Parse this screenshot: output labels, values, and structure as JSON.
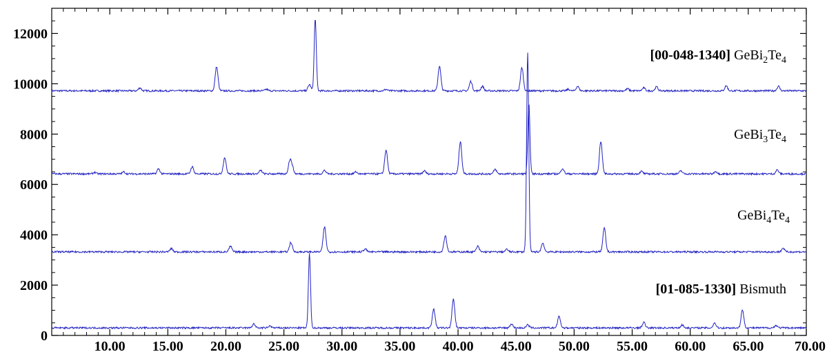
{
  "chart_data": {
    "type": "line",
    "title": "",
    "xlabel": "",
    "ylabel": "",
    "xlim": [
      5,
      70
    ],
    "ylim": [
      0,
      13000
    ],
    "x_ticks": [
      10,
      15,
      20,
      25,
      30,
      35,
      40,
      45,
      50,
      55,
      60,
      65,
      70
    ],
    "x_tick_labels": [
      "10.00",
      "15.00",
      "20.00",
      "25.00",
      "30.00",
      "35.00",
      "40.00",
      "45.00",
      "50.00",
      "55.00",
      "60.00",
      "65.00",
      "70.00"
    ],
    "y_ticks": [
      0,
      2000,
      4000,
      6000,
      8000,
      10000,
      12000
    ],
    "y_tick_labels": [
      "0",
      "2000",
      "4000",
      "6000",
      "8000",
      "10000",
      "12000"
    ],
    "grid": false,
    "line_color": "#2020c0",
    "series": [
      {
        "name": "GeBi2Te4",
        "baseline": 9720,
        "peaks": [
          [
            12.6,
            120
          ],
          [
            19.2,
            960
          ],
          [
            23.5,
            60
          ],
          [
            27.2,
            250
          ],
          [
            27.7,
            2850
          ],
          [
            33.8,
            60
          ],
          [
            38.4,
            980
          ],
          [
            41.1,
            380
          ],
          [
            42.1,
            180
          ],
          [
            45.5,
            920
          ],
          [
            49.5,
            60
          ],
          [
            50.3,
            180
          ],
          [
            54.6,
            80
          ],
          [
            56.0,
            120
          ],
          [
            57.1,
            160
          ],
          [
            63.1,
            200
          ],
          [
            67.6,
            180
          ]
        ]
      },
      {
        "name": "GeBi3Te4",
        "baseline": 6420,
        "peaks": [
          [
            8.7,
            60
          ],
          [
            11.2,
            80
          ],
          [
            14.2,
            200
          ],
          [
            17.1,
            280
          ],
          [
            19.9,
            650
          ],
          [
            23.0,
            140
          ],
          [
            25.5,
            480
          ],
          [
            25.7,
            300
          ],
          [
            28.5,
            140
          ],
          [
            31.2,
            80
          ],
          [
            33.8,
            950
          ],
          [
            37.1,
            120
          ],
          [
            40.2,
            1280
          ],
          [
            43.2,
            180
          ],
          [
            46.1,
            2770
          ],
          [
            49.0,
            220
          ],
          [
            52.3,
            1300
          ],
          [
            55.8,
            100
          ],
          [
            59.2,
            120
          ],
          [
            62.2,
            100
          ],
          [
            67.5,
            160
          ]
        ]
      },
      {
        "name": "GeBi4Te4",
        "baseline": 3320,
        "peaks": [
          [
            15.3,
            130
          ],
          [
            20.4,
            220
          ],
          [
            25.6,
            380
          ],
          [
            28.5,
            990
          ],
          [
            32.0,
            120
          ],
          [
            38.9,
            650
          ],
          [
            41.7,
            220
          ],
          [
            44.2,
            100
          ],
          [
            46.0,
            7900
          ],
          [
            47.3,
            350
          ],
          [
            52.6,
            940
          ],
          [
            68.0,
            150
          ]
        ]
      },
      {
        "name": "Bismuth",
        "baseline": 300,
        "peaks": [
          [
            22.4,
            160
          ],
          [
            23.8,
            80
          ],
          [
            27.2,
            2950
          ],
          [
            37.9,
            750
          ],
          [
            39.6,
            1130
          ],
          [
            44.6,
            160
          ],
          [
            46.0,
            120
          ],
          [
            48.7,
            450
          ],
          [
            56.0,
            220
          ],
          [
            59.3,
            120
          ],
          [
            62.1,
            200
          ],
          [
            64.5,
            700
          ],
          [
            67.4,
            100
          ]
        ]
      }
    ],
    "annotations": [
      {
        "bold": "[00-048-1340]",
        "name": "GeBi",
        "sub1": "2",
        "mid": "Te",
        "sub2": "4"
      },
      {
        "bold": "",
        "name": "GeBi",
        "sub1": "3",
        "mid": "Te",
        "sub2": "4"
      },
      {
        "bold": "",
        "name": "GeBi",
        "sub1": "4",
        "mid": "Te",
        "sub2": "4"
      },
      {
        "bold": "[01-085-1330]",
        "name": "Bismuth",
        "sub1": "",
        "mid": "",
        "sub2": ""
      }
    ]
  }
}
